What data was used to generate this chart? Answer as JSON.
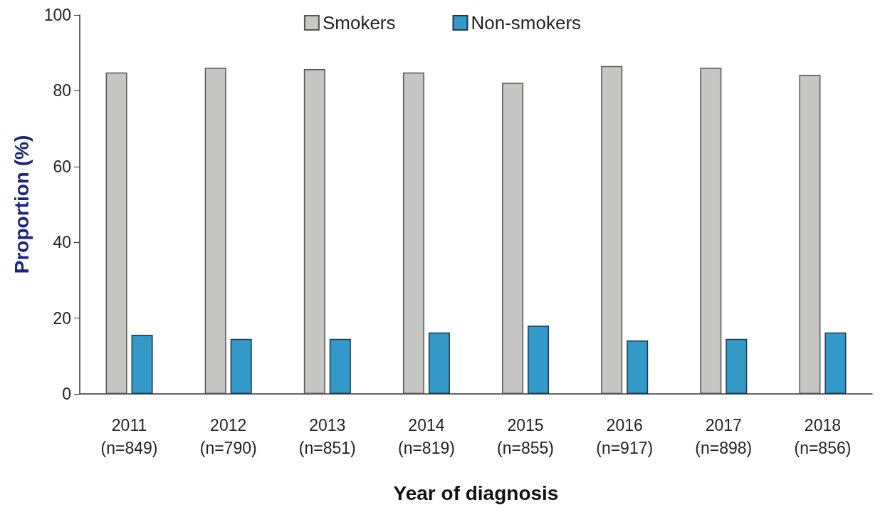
{
  "chart_data": {
    "type": "bar",
    "xlabel": "Year of diagnosis",
    "ylabel": "Proportion (%)",
    "categories": [
      "2011\n(n=849)",
      "2012\n(n=790)",
      "2013\n(n=851)",
      "2014\n(n=819)",
      "2015\n(n=855)",
      "2016\n(n=917)",
      "2017\n(n=898)",
      "2018\n(n=856)"
    ],
    "series": [
      {
        "name": "Smokers",
        "color": "#c6c6c5",
        "values": [
          84.8,
          86.1,
          85.7,
          84.8,
          82.1,
          86.5,
          86.1,
          84.2
        ]
      },
      {
        "name": "Non-smokers",
        "color": "#3399c8",
        "values": [
          15.6,
          14.5,
          14.5,
          16.2,
          18.0,
          14.1,
          14.5,
          16.2
        ]
      }
    ],
    "ylim": [
      0,
      100
    ],
    "yticks": [
      0,
      20,
      40,
      60,
      80,
      100
    ],
    "grid": false,
    "legend": "top"
  }
}
